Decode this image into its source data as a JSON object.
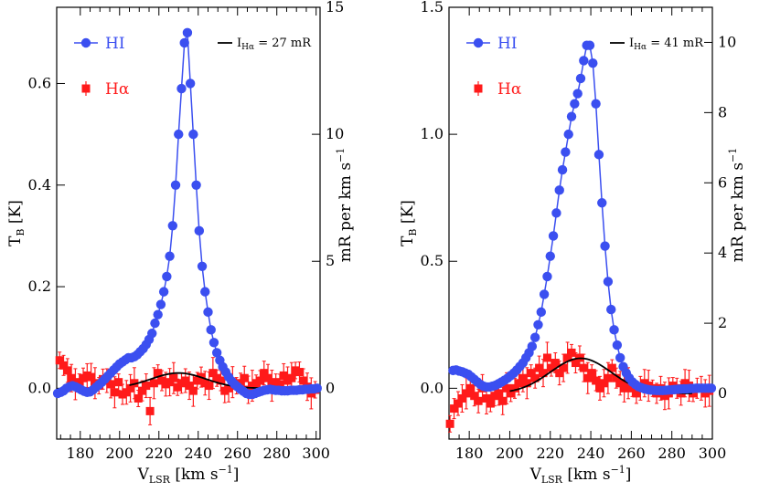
{
  "chart_data": [
    {
      "type": "line",
      "panel": "left",
      "xlabel_main": "V",
      "xlabel_sub": "LSR",
      "xlabel_units": " [km s",
      "ylabel_main": "T",
      "ylabel_sub": "B",
      "ylabel_units": " [K]",
      "y2label": "mR per km s",
      "xlim": [
        168,
        302
      ],
      "ylim": [
        -0.1,
        0.75
      ],
      "y2lim": [
        -2.0,
        15.0
      ],
      "xticks": [
        "180",
        "200",
        "220",
        "240",
        "260",
        "280",
        "300"
      ],
      "yticks": [
        "0.0",
        "0.2",
        "0.4",
        "0.6"
      ],
      "y2ticks": [
        "0",
        "5",
        "10",
        "15"
      ],
      "legend": {
        "hi": "HI",
        "ha": "Hα",
        "fit_main": "I",
        "fit_sub": "Hα",
        "fit_value": " = 27 mR"
      },
      "colors": {
        "hi": "#3b4ff0",
        "ha": "#ff1a1a",
        "fit": "#000000"
      },
      "fit": {
        "amplitude": 0.6,
        "center": 230,
        "sigma": 14
      },
      "series": [
        {
          "name": "HI",
          "x": [
            168.5,
            170,
            171.5,
            173,
            174.5,
            176,
            177.5,
            179,
            180.5,
            182,
            183.5,
            185,
            186.5,
            188,
            189.5,
            191,
            192.5,
            194,
            195.5,
            197,
            198.5,
            200,
            201.5,
            203,
            204.5,
            206,
            207.5,
            209,
            210.5,
            212,
            213.5,
            215,
            216.5,
            218,
            219.5,
            221,
            222.5,
            224,
            225.5,
            227,
            228.5,
            230,
            231.5,
            233,
            234.5,
            236,
            237.5,
            239,
            240.5,
            242,
            243.5,
            245,
            246.5,
            248,
            249.5,
            251,
            252.5,
            254,
            255.5,
            257,
            258.5,
            260,
            261.5,
            263,
            264.5,
            266,
            267.5,
            269,
            270.5,
            272,
            273.5,
            275,
            276.5,
            278,
            279.5,
            281,
            282.5,
            284,
            285.5,
            287,
            288.5,
            290,
            291.5,
            293,
            294.5,
            296,
            297.5,
            299,
            300.5
          ],
          "values": [
            -0.01,
            -0.008,
            -0.005,
            0.0,
            0.003,
            0.005,
            0.003,
            0.0,
            -0.003,
            -0.006,
            -0.008,
            -0.007,
            -0.003,
            0.002,
            0.007,
            0.012,
            0.018,
            0.024,
            0.03,
            0.036,
            0.042,
            0.048,
            0.052,
            0.056,
            0.06,
            0.06,
            0.062,
            0.066,
            0.072,
            0.078,
            0.086,
            0.096,
            0.108,
            0.128,
            0.145,
            0.165,
            0.19,
            0.22,
            0.26,
            0.32,
            0.4,
            0.5,
            0.59,
            0.68,
            0.7,
            0.6,
            0.5,
            0.4,
            0.31,
            0.24,
            0.19,
            0.15,
            0.115,
            0.09,
            0.07,
            0.055,
            0.042,
            0.032,
            0.022,
            0.014,
            0.008,
            0.003,
            -0.002,
            -0.006,
            -0.01,
            -0.012,
            -0.012,
            -0.01,
            -0.008,
            -0.006,
            -0.004,
            -0.003,
            -0.002,
            -0.003,
            -0.004,
            -0.004,
            -0.005,
            -0.005,
            -0.005,
            -0.004,
            -0.004,
            -0.004,
            -0.003,
            -0.003,
            -0.002,
            -0.002,
            -0.001,
            -0.001,
            0.0
          ]
        },
        {
          "name": "Hα",
          "x": [
            169.5,
            171.5,
            173.5,
            175.5,
            177.5,
            179.5,
            181.5,
            183.5,
            185.5,
            187.5,
            189.5,
            191.5,
            193.5,
            195.5,
            197.5,
            199.5,
            201.5,
            203.5,
            205.5,
            207.5,
            209.5,
            211.5,
            213.5,
            215.5,
            217.5,
            219.5,
            221.5,
            223.5,
            225.5,
            227.5,
            229.5,
            231.5,
            233.5,
            235.5,
            237.5,
            239.5,
            241.5,
            243.5,
            245.5,
            247.5,
            249.5,
            251.5,
            253.5,
            255.5,
            257.5,
            259.5,
            261.5,
            263.5,
            265.5,
            267.5,
            269.5,
            271.5,
            273.5,
            275.5,
            277.5,
            279.5,
            281.5,
            283.5,
            285.5,
            287.5,
            289.5,
            291.5,
            293.5,
            295.5,
            297.5,
            299.5
          ],
          "values": [
            0.055,
            0.045,
            0.035,
            0.02,
            0.008,
            0.012,
            0.02,
            0.025,
            0.022,
            0.01,
            0.005,
            0.018,
            0.015,
            0.008,
            -0.008,
            0.012,
            -0.012,
            -0.008,
            0.0,
            0.01,
            -0.02,
            -0.005,
            0.005,
            -0.045,
            0.01,
            0.03,
            0.015,
            0.008,
            0.012,
            0.02,
            0.002,
            0.01,
            0.015,
            0.005,
            -0.005,
            0.015,
            0.022,
            0.01,
            0.005,
            0.03,
            0.02,
            0.015,
            -0.005,
            0.0,
            0.012,
            0.005,
            0.01,
            0.02,
            -0.003,
            0.005,
            0.01,
            0.015,
            0.03,
            0.02,
            0.005,
            0.012,
            0.008,
            0.025,
            0.015,
            0.02,
            0.035,
            0.032,
            0.015,
            0.003,
            -0.01,
            -0.003
          ]
        }
      ]
    },
    {
      "type": "line",
      "panel": "right",
      "xlabel_main": "V",
      "xlabel_sub": "LSR",
      "xlabel_units": " [km s",
      "ylabel_main": "T",
      "ylabel_sub": "B",
      "ylabel_units": " [K]",
      "y2label": "mR per km s",
      "xlim": [
        170,
        300
      ],
      "ylim": [
        -0.2,
        1.5
      ],
      "y2lim": [
        -1.3,
        11.0
      ],
      "xticks": [
        "180",
        "200",
        "220",
        "240",
        "260",
        "280",
        "300"
      ],
      "yticks": [
        "0.0",
        "0.5",
        "1.0",
        "1.5"
      ],
      "y2ticks": [
        "0",
        "2",
        "4",
        "6",
        "8",
        "10"
      ],
      "legend": {
        "hi": "HI",
        "ha": "Hα",
        "fit_main": "I",
        "fit_sub": "Hα",
        "fit_value": " = 41 mR"
      },
      "colors": {
        "hi": "#3b4ff0",
        "ha": "#ff1a1a",
        "fit": "#000000"
      },
      "fit": {
        "amplitude": 1.0,
        "center": 235,
        "sigma": 15
      },
      "series": [
        {
          "name": "HI",
          "x": [
            172,
            173.5,
            175,
            176.5,
            178,
            179.5,
            181,
            182.5,
            184,
            185.5,
            187,
            188.5,
            190,
            191.5,
            193,
            194.5,
            196,
            197.5,
            199,
            200.5,
            202,
            203.5,
            205,
            206.5,
            208,
            209.5,
            211,
            212.5,
            214,
            215.5,
            217,
            218.5,
            220,
            221.5,
            223,
            224.5,
            226,
            227.5,
            229,
            230.5,
            232,
            233.5,
            235,
            236.5,
            238,
            239.5,
            241,
            242.5,
            244,
            245.5,
            247,
            248.5,
            250,
            251.5,
            253,
            254.5,
            256,
            257.5,
            259,
            260.5,
            262,
            263.5,
            265,
            266.5,
            268,
            269.5,
            271,
            272.5,
            274,
            275.5,
            277,
            278.5,
            280,
            281.5,
            283,
            284.5,
            286,
            287.5,
            289,
            290.5,
            292,
            293.5,
            295,
            296.5,
            298,
            299.5
          ],
          "values": [
            0.07,
            0.072,
            0.068,
            0.065,
            0.06,
            0.055,
            0.045,
            0.035,
            0.025,
            0.015,
            0.008,
            0.005,
            0.005,
            0.008,
            0.012,
            0.018,
            0.025,
            0.032,
            0.04,
            0.05,
            0.06,
            0.072,
            0.086,
            0.1,
            0.12,
            0.14,
            0.165,
            0.2,
            0.25,
            0.3,
            0.37,
            0.44,
            0.52,
            0.6,
            0.69,
            0.78,
            0.86,
            0.93,
            1.0,
            1.07,
            1.12,
            1.16,
            1.22,
            1.29,
            1.35,
            1.35,
            1.28,
            1.12,
            0.92,
            0.73,
            0.56,
            0.42,
            0.31,
            0.23,
            0.17,
            0.12,
            0.085,
            0.06,
            0.04,
            0.025,
            0.015,
            0.007,
            0.002,
            -0.002,
            -0.005,
            -0.007,
            -0.008,
            -0.009,
            -0.009,
            -0.009,
            -0.008,
            -0.007,
            -0.006,
            -0.005,
            -0.004,
            -0.003,
            -0.002,
            -0.002,
            -0.001,
            -0.001,
            0.0,
            0.0,
            0.0,
            0.0,
            0.0,
            0.0
          ]
        },
        {
          "name": "Hα",
          "x": [
            170.5,
            172.5,
            174.5,
            176.5,
            178.5,
            180.5,
            182.5,
            184.5,
            186.5,
            188.5,
            190.5,
            192.5,
            194.5,
            196.5,
            198.5,
            200.5,
            202.5,
            204.5,
            206.5,
            208.5,
            210.5,
            212.5,
            214.5,
            216.5,
            218.5,
            220.5,
            222.5,
            224.5,
            226.5,
            228.5,
            230.5,
            232.5,
            234.5,
            236.5,
            238.5,
            240.5,
            242.5,
            244.5,
            246.5,
            248.5,
            250.5,
            252.5,
            254.5,
            256.5,
            258.5,
            260.5,
            262.5,
            264.5,
            266.5,
            268.5,
            270.5,
            272.5,
            274.5,
            276.5,
            278.5,
            280.5,
            282.5,
            284.5,
            286.5,
            288.5,
            290.5,
            292.5,
            294.5,
            296.5,
            298.5
          ],
          "values": [
            -0.14,
            -0.08,
            -0.06,
            -0.04,
            -0.02,
            0.0,
            -0.03,
            -0.05,
            0.0,
            -0.04,
            -0.06,
            -0.03,
            -0.02,
            -0.05,
            0.0,
            -0.02,
            0.0,
            0.02,
            0.04,
            0.02,
            0.06,
            0.04,
            0.08,
            0.06,
            0.12,
            0.08,
            0.1,
            0.06,
            0.08,
            0.12,
            0.14,
            0.1,
            0.12,
            0.08,
            0.04,
            0.06,
            0.03,
            0.0,
            0.02,
            0.04,
            0.08,
            0.04,
            0.02,
            0.0,
            0.02,
            0.0,
            -0.02,
            0.0,
            0.02,
            0.01,
            0.0,
            -0.02,
            0.0,
            -0.03,
            -0.02,
            0.01,
            0.0,
            -0.02,
            0.02,
            0.01,
            -0.02,
            0.0,
            0.0,
            -0.02,
            -0.01
          ]
        }
      ]
    }
  ]
}
